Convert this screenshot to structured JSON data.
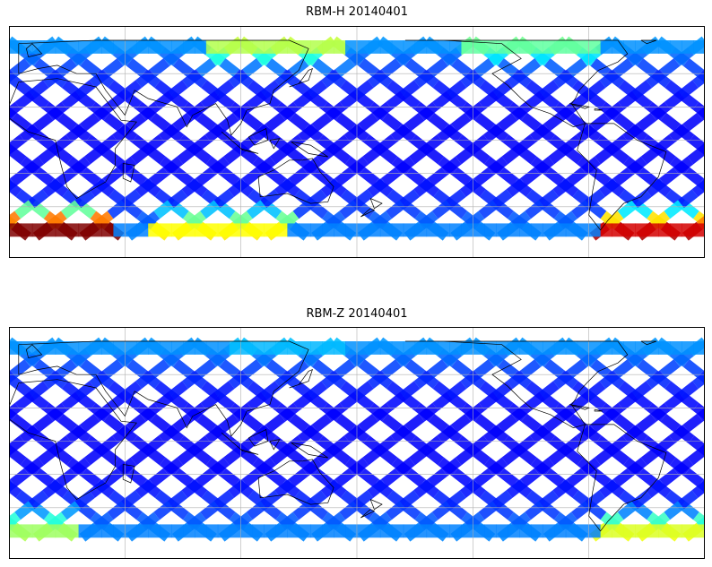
{
  "panels": [
    {
      "title": "RBM-H 20140401",
      "colormap": "jet",
      "hot_regions": [
        {
          "lon_start": -15,
          "lon_end": 30,
          "lat": -55,
          "intensity": 0.95
        },
        {
          "lon_start": 70,
          "lon_end": 120,
          "lat": -55,
          "intensity": 0.55
        },
        {
          "lon_start": 300,
          "lon_end": 345,
          "lat": -58,
          "intensity": 1.0
        },
        {
          "lon_start": 95,
          "lon_end": 150,
          "lat": 60,
          "intensity": 0.55
        },
        {
          "lon_start": 230,
          "lon_end": 280,
          "lat": 60,
          "intensity": 0.45
        }
      ]
    },
    {
      "title": "RBM-Z 20140401",
      "colormap": "jet",
      "hot_regions": [
        {
          "lon_start": -15,
          "lon_end": 10,
          "lat": -55,
          "intensity": 0.45
        },
        {
          "lon_start": 300,
          "lon_end": 345,
          "lat": -58,
          "intensity": 0.6
        },
        {
          "lon_start": 110,
          "lon_end": 150,
          "lat": 60,
          "intensity": 0.25
        }
      ]
    }
  ],
  "map": {
    "lon_range": [
      -15,
      345
    ],
    "lat_range": [
      -60,
      60
    ],
    "gridline_lons": [
      45,
      105,
      165,
      225,
      285
    ],
    "gridline_lats": [
      -40,
      -20,
      0,
      20,
      40
    ],
    "gridlines": true,
    "coastlines": true
  }
}
